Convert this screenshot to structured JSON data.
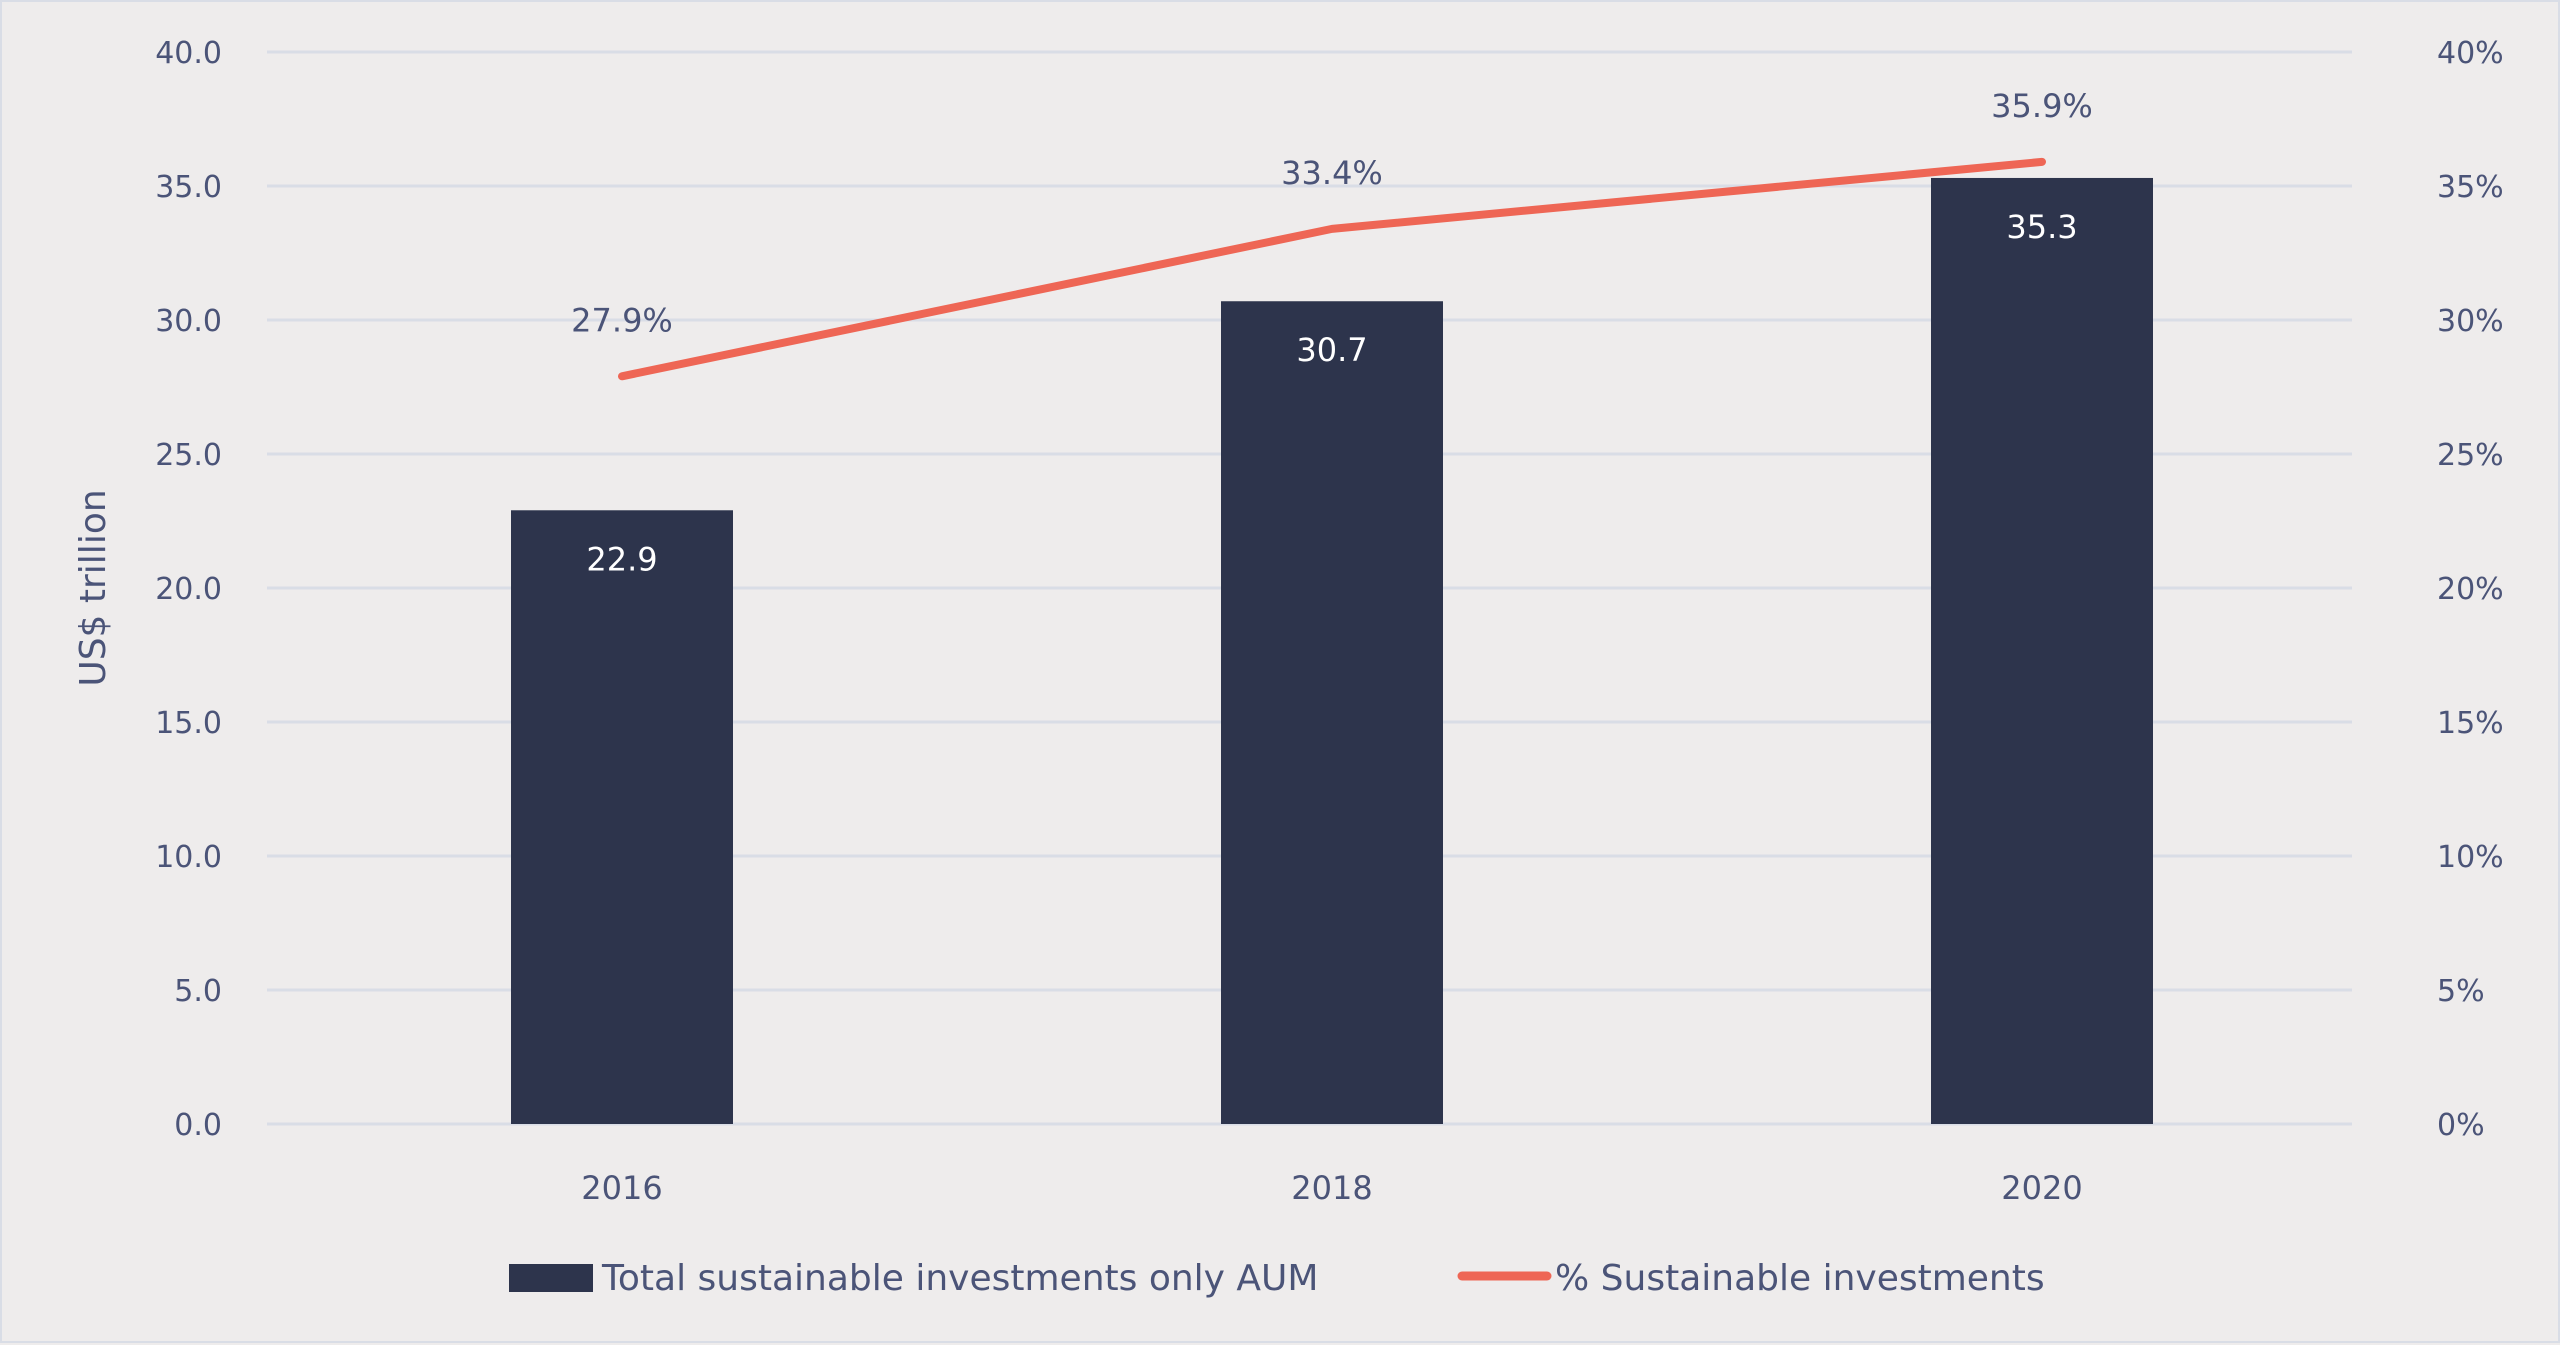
{
  "chart_data": {
    "type": "bar",
    "categories": [
      "2016",
      "2018",
      "2020"
    ],
    "series": [
      {
        "name": "Total sustainable investments only AUM",
        "type": "bar",
        "axis": "left",
        "values": [
          22.9,
          30.7,
          35.3
        ],
        "labels": [
          "22.9",
          "30.7",
          "35.3"
        ],
        "color": "#2d344c"
      },
      {
        "name": "% Sustainable investments",
        "type": "line",
        "axis": "right",
        "values": [
          27.9,
          33.4,
          35.9
        ],
        "labels": [
          "27.9%",
          "33.4%",
          "35.9%"
        ],
        "color": "#ee6655"
      }
    ],
    "ylabel": "US$ trillion",
    "ylim": [
      0,
      40
    ],
    "y_ticks": [
      "0.0",
      "5.0",
      "10.0",
      "15.0",
      "20.0",
      "25.0",
      "30.0",
      "35.0",
      "40.0"
    ],
    "y2lim": [
      0,
      40
    ],
    "y2_ticks": [
      "0%",
      "5%",
      "10%",
      "15%",
      "20%",
      "25%",
      "30%",
      "35%",
      "40%"
    ],
    "grid": true,
    "gridline_color": "#d9dde6",
    "legend_position": "bottom",
    "text_color": "#4b5478"
  }
}
